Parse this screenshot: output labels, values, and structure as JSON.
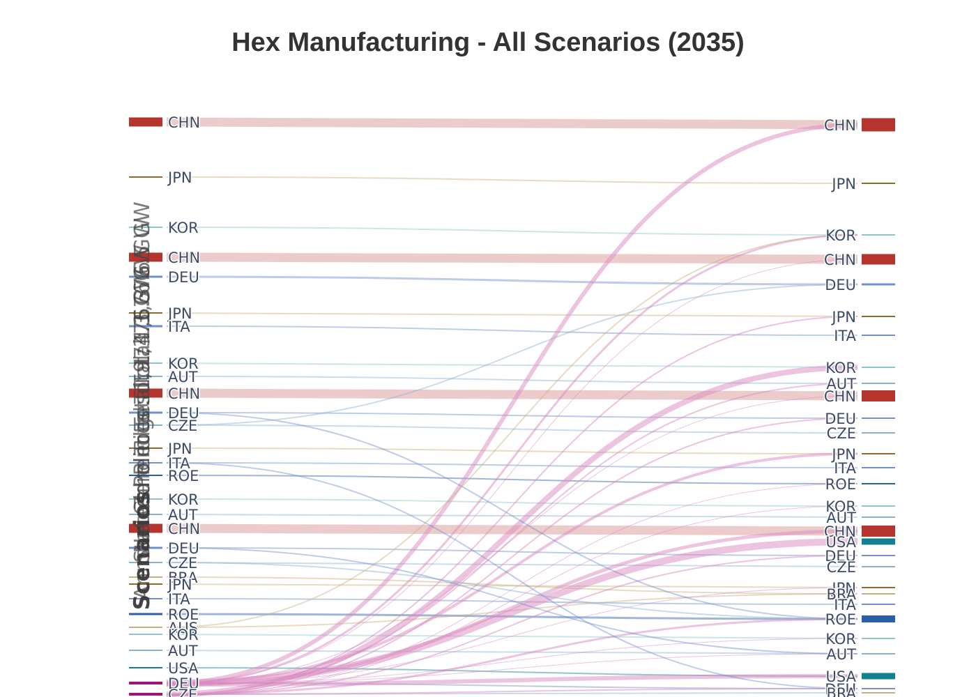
{
  "title": "Hex Manufacturing - All Scenarios (2035)",
  "colors": {
    "CHN": "#b5352e",
    "JPN": "#c9b07a",
    "KOR": "#8cc5cc",
    "DEU": "#6f8fcf",
    "ITA": "#6f8fcf",
    "AUT": "#8ab0d0",
    "CZE": "#8ab0d0",
    "ROE": "#2a5ea8",
    "USA": "#137f8f",
    "BRA": "#c9b07a",
    "AUS": "#c9b07a",
    "FLOW_PINK": "#d98abf",
    "JPN_NODE": "#8c6b2a"
  },
  "scenario_labels": [
    "Current Total: 1,376.3 GW",
    "Stated Policies Total: 1,576.6 GW",
    "Announced Pledges Total: 1,676.5 GW",
    "Net Zero Total: 1,974.3 GW",
    "Scenarios"
  ],
  "left_nodes": [
    {
      "label": "CHN"
    },
    {
      "label": "JPN"
    },
    {
      "label": "KOR"
    },
    {
      "label": "CHN"
    },
    {
      "label": "DEU"
    },
    {
      "label": "JPN"
    },
    {
      "label": "ITA"
    },
    {
      "label": "KOR"
    },
    {
      "label": "AUT"
    },
    {
      "label": "CHN"
    },
    {
      "label": "DEU"
    },
    {
      "label": "CZE"
    },
    {
      "label": "JPN"
    },
    {
      "label": "ITA"
    },
    {
      "label": "ROE"
    },
    {
      "label": "KOR"
    },
    {
      "label": "AUT"
    },
    {
      "label": "CHN"
    },
    {
      "label": "DEU"
    },
    {
      "label": "CZE"
    },
    {
      "label": "BRA"
    },
    {
      "label": "JPN"
    },
    {
      "label": "ITA"
    },
    {
      "label": "ROE"
    },
    {
      "label": "AUS"
    },
    {
      "label": "KOR"
    },
    {
      "label": "AUT"
    },
    {
      "label": "USA"
    },
    {
      "label": "DEU"
    },
    {
      "label": "CZE"
    }
  ],
  "right_nodes": [
    {
      "label": "CHN"
    },
    {
      "label": "JPN"
    },
    {
      "label": "KOR"
    },
    {
      "label": "CHN"
    },
    {
      "label": "DEU"
    },
    {
      "label": "JPN"
    },
    {
      "label": "ITA"
    },
    {
      "label": "KOR"
    },
    {
      "label": "AUT"
    },
    {
      "label": "CHN"
    },
    {
      "label": "DEU"
    },
    {
      "label": "CZE"
    },
    {
      "label": "JPN"
    },
    {
      "label": "ITA"
    },
    {
      "label": "ROE"
    },
    {
      "label": "KOR"
    },
    {
      "label": "AUT"
    },
    {
      "label": "CHN"
    },
    {
      "label": "USA"
    },
    {
      "label": "DEU"
    },
    {
      "label": "CZE"
    },
    {
      "label": "JPN"
    },
    {
      "label": "BRA"
    },
    {
      "label": "ITA"
    },
    {
      "label": "ROE"
    },
    {
      "label": "KOR"
    },
    {
      "label": "AUT"
    },
    {
      "label": "USA"
    },
    {
      "label": "DEU"
    },
    {
      "label": "BRA"
    }
  ]
}
